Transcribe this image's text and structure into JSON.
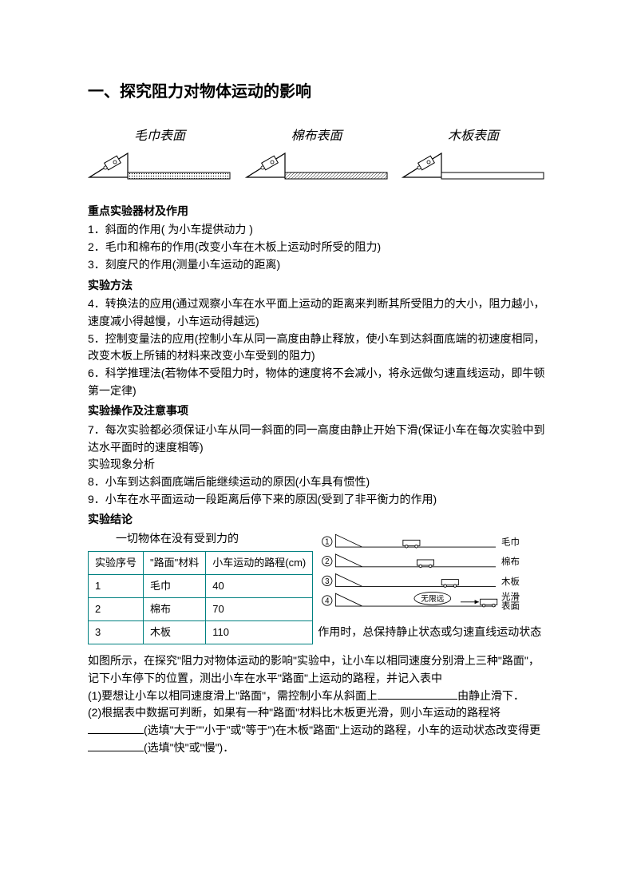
{
  "title": "一、探究阻力对物体运动的影响",
  "surfaces": [
    {
      "label": "毛巾表面",
      "pattern": "dense"
    },
    {
      "label": "棉布表面",
      "pattern": "medium"
    },
    {
      "label": "木板表面",
      "pattern": "none"
    }
  ],
  "headings": {
    "equipment": "重点实验器材及作用",
    "method": "实验方法",
    "operation": "实验操作及注意事项",
    "analysis": "实验现象分析",
    "conclusion": "实验结论"
  },
  "items": {
    "eq1": "1．斜面的作用(   为小车提供动力   )",
    "eq2": "2．毛巾和棉布的作用(改变小车在木板上运动时所受的阻力)",
    "eq3": "3．刻度尺的作用(测量小车运动的距离)",
    "m4": "4．转换法的应用(通过观察小车在水平面上运动的距离来判断其所受阻力的大小，阻力越小，速度减小得越慢，小车运动得越远)",
    "m5": "5．控制变量法的应用(控制小车从同一高度由静止释放，使小车到达斜面底端的初速度相同，改变木板上所铺的材料来改变小车受到的阻力)",
    "m6": "6．科学推理法(若物体不受阻力时，物体的速度将不会减小，将永远做匀速直线运动，即牛顿第一定律)",
    "op7": "7．每次实验都必须保证小车从同一斜面的同一高度由静止开始下滑(保证小车在每次实验中到达水平面时的速度相等)",
    "an8": "8．小车到达斜面底端后能继续运动的原因(小车具有惯性)",
    "an9": "9．小车在水平面运动一段距离后停下来的原因(受到了非平衡力的作用)"
  },
  "conclusion_lead": "一切物体在没有受到力的",
  "conclusion_tail": "作用时，总保持静止状态或匀速直线运动状态",
  "table": {
    "headers": [
      "实验序号",
      "\"路面\"材料",
      "小车运动的路程(cm)"
    ],
    "rows": [
      [
        "1",
        "毛巾",
        "40"
      ],
      [
        "2",
        "棉布",
        "70"
      ],
      [
        "3",
        "木板",
        "110"
      ]
    ]
  },
  "trials": {
    "labels": [
      "毛巾",
      "棉布",
      "木板",
      "光滑表面"
    ],
    "infinite": "无限远",
    "car_positions": [
      130,
      150,
      185,
      240
    ]
  },
  "colors": {
    "text": "#000000",
    "table_border": "#008080",
    "background": "#ffffff"
  },
  "questions": {
    "intro": "如图所示，在探究\"阻力对物体运动的影响\"实验中，让小车以相同速度分别滑上三种\"路面\"，记下小车停下的位置，测出小车在水平\"路面\"上运动的路程，并记入表中",
    "q1a": "(1)要想让小车以相同速度滑上\"路面\"，需控制小车从斜面上",
    "q1b": "由静止滑下．",
    "q2a": "(2)根据表中数据可判断，如果有一种\"路面\"材料比木板更光滑，则小车运动的路程将",
    "q2b": "(选填\"大于\"\"小于\"或\"等于\")在木板\"路面\"上运动的路程，小车的运动状态改变得更",
    "q2c": "(选填\"快\"或\"慢\")．"
  }
}
